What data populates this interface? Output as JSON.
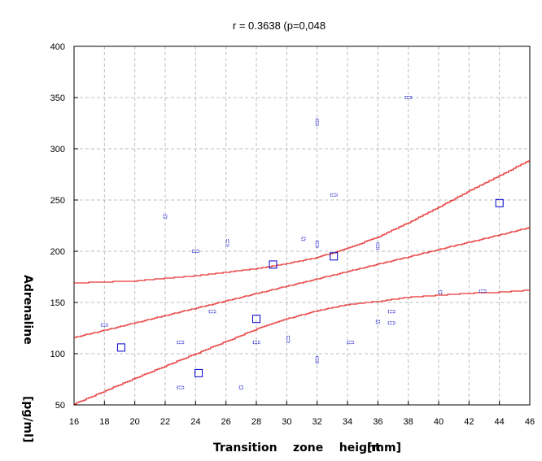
{
  "chart_data": {
    "type": "scatter",
    "title": "r = 0.3638 (p=0,048",
    "xlabel": "Transition    zone    height",
    "xlabel_unit": "[mm]",
    "ylabel": "Adrenaline",
    "ylabel_unit": "[pg/ml]",
    "xlim": [
      16,
      46
    ],
    "ylim": [
      50,
      400
    ],
    "xticks": [
      16,
      18,
      20,
      22,
      24,
      26,
      28,
      30,
      32,
      34,
      36,
      38,
      40,
      42,
      44,
      46
    ],
    "yticks": [
      50,
      100,
      150,
      200,
      250,
      300,
      350,
      400
    ],
    "grid": true,
    "colors": {
      "points": "#0000cc",
      "lines": "#e00000",
      "grid": "#bdbdbd"
    },
    "points": [
      {
        "x": 18.0,
        "y": 128,
        "shape": "h"
      },
      {
        "x": 19.1,
        "y": 106,
        "shape": "b"
      },
      {
        "x": 22.0,
        "y": 234,
        "shape": "s"
      },
      {
        "x": 23.0,
        "y": 111,
        "shape": "h"
      },
      {
        "x": 23.0,
        "y": 67,
        "shape": "h"
      },
      {
        "x": 24.0,
        "y": 200,
        "shape": "h"
      },
      {
        "x": 24.2,
        "y": 81,
        "shape": "b"
      },
      {
        "x": 25.1,
        "y": 141,
        "shape": "h"
      },
      {
        "x": 26.1,
        "y": 208,
        "shape": "v"
      },
      {
        "x": 27.0,
        "y": 67,
        "shape": "s"
      },
      {
        "x": 28.0,
        "y": 134,
        "shape": "b"
      },
      {
        "x": 28.0,
        "y": 111,
        "shape": "h"
      },
      {
        "x": 29.1,
        "y": 187,
        "shape": "b"
      },
      {
        "x": 30.1,
        "y": 114,
        "shape": "v"
      },
      {
        "x": 31.1,
        "y": 212,
        "shape": "s"
      },
      {
        "x": 32.0,
        "y": 326,
        "shape": "v"
      },
      {
        "x": 32.0,
        "y": 207,
        "shape": "v"
      },
      {
        "x": 32.0,
        "y": 94,
        "shape": "v"
      },
      {
        "x": 33.1,
        "y": 255,
        "shape": "h"
      },
      {
        "x": 33.1,
        "y": 195,
        "shape": "b"
      },
      {
        "x": 34.2,
        "y": 111,
        "shape": "h"
      },
      {
        "x": 36.0,
        "y": 205,
        "shape": "v"
      },
      {
        "x": 36.0,
        "y": 131,
        "shape": "s"
      },
      {
        "x": 36.9,
        "y": 141,
        "shape": "h"
      },
      {
        "x": 36.9,
        "y": 130,
        "shape": "h"
      },
      {
        "x": 38.0,
        "y": 350,
        "shape": "h"
      },
      {
        "x": 40.1,
        "y": 160,
        "shape": "s"
      },
      {
        "x": 42.9,
        "y": 161,
        "shape": "h"
      },
      {
        "x": 44.0,
        "y": 247,
        "shape": "b"
      }
    ],
    "regression": {
      "intercept": 58.5,
      "slope": 3.58
    },
    "band_upper": [
      [
        16,
        169
      ],
      [
        20,
        171
      ],
      [
        24,
        176
      ],
      [
        28,
        183
      ],
      [
        30,
        188
      ],
      [
        32,
        194
      ],
      [
        34,
        203
      ],
      [
        36,
        214
      ],
      [
        38,
        228
      ],
      [
        40,
        243
      ],
      [
        42,
        259
      ],
      [
        44,
        274
      ],
      [
        46,
        289
      ]
    ],
    "band_lower": [
      [
        16,
        51
      ],
      [
        20,
        76
      ],
      [
        24,
        100
      ],
      [
        28,
        124
      ],
      [
        30,
        134
      ],
      [
        32,
        142
      ],
      [
        34,
        148
      ],
      [
        36,
        151
      ],
      [
        38,
        155
      ],
      [
        40,
        157
      ],
      [
        42,
        159
      ],
      [
        44,
        160
      ],
      [
        46,
        162
      ]
    ]
  }
}
